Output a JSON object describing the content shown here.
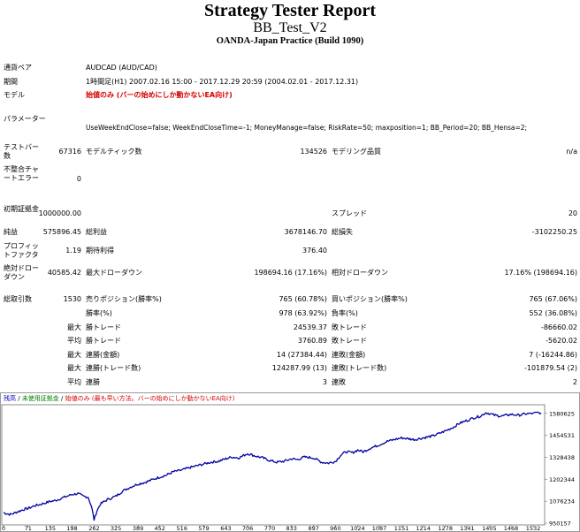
{
  "header": {
    "title": "Strategy Tester Report",
    "ea_name": "BB_Test_V2",
    "server": "OANDA-Japan Practice (Build 1090)"
  },
  "settings": {
    "symbol_label": "通貨ペア",
    "symbol_value": "AUDCAD (AUD/CAD)",
    "period_label": "期間",
    "period_value": "1時間足(H1) 2007.02.16 15:00 - 2017.12.29 20:59 (2004.02.01 - 2017.12.31)",
    "model_label": "モデル",
    "model_value": "始値のみ (バーの始めにしか動かないEA向け)",
    "params_label": "パラメーター",
    "params_value": "UseWeekEndClose=false; WeekEndCloseTime=-1; MoneyManage=false; RiskRate=50; maxposition=1; BB_Period=20; BB_Hensa=2;"
  },
  "stats1": {
    "bars_label": "テストバー数",
    "bars_value": "67316",
    "ticks_label": "モデルティック数",
    "ticks_value": "134526",
    "quality_label": "モデリング品質",
    "quality_value": "n/a",
    "mismatch_label": "不整合チャートエラー",
    "mismatch_value": "0"
  },
  "stats2": {
    "deposit_label": "初期証拠金",
    "deposit_value": "1000000.00",
    "spread_label": "スプレッド",
    "spread_value": "20",
    "net_label": "純益",
    "net_value": "575896.45",
    "gross_profit_label": "総利益",
    "gross_profit_value": "3678146.70",
    "gross_loss_label": "総損失",
    "gross_loss_value": "-3102250.25",
    "pf_label": "プロフィットファクタ",
    "pf_value": "1.19",
    "expected_label": "期待利得",
    "expected_value": "376.40",
    "abs_dd_label": "絶対ドローダウン",
    "abs_dd_value": "40585.42",
    "max_dd_label": "最大ドローダウン",
    "max_dd_value": "198694.16 (17.16%)",
    "rel_dd_label": "相対ドローダウン",
    "rel_dd_value": "17.16% (198694.16)"
  },
  "trades": {
    "total_label": "総取引数",
    "total_value": "1530",
    "short_label": "売りポジション(勝率%)",
    "short_value": "765 (60.78%)",
    "long_label": "買いポジション(勝率%)",
    "long_value": "765 (67.06%)",
    "win_pct_label": "勝率(%)",
    "win_pct_value": "978 (63.92%)",
    "loss_pct_label": "負率(%)",
    "loss_pct_value": "552 (36.08%)",
    "max_label": "最大",
    "avg_label": "平均",
    "win_trade_label": "勝トレード",
    "loss_trade_label": "敗トレード",
    "max_win_value": "24539.37",
    "max_loss_value": "-86660.02",
    "avg_win_value": "3760.89",
    "avg_loss_value": "-5620.02",
    "consec_money_win_label": "連勝(金額)",
    "consec_money_win_value": "14 (27384.44)",
    "consec_money_loss_label": "連敗(金額)",
    "consec_money_loss_value": "7 (-16244.86)",
    "consec_trade_win_label": "連勝(トレード数)",
    "consec_trade_win_value": "124287.99 (13)",
    "consec_trade_loss_label": "連敗(トレード数)",
    "consec_trade_loss_value": "-101879.54 (2)",
    "avg_consec_win_label": "連勝",
    "avg_consec_win_value": "3",
    "avg_consec_loss_label": "連敗",
    "avg_consec_loss_value": "2"
  },
  "legend": {
    "balance": "残高",
    "sep1": " / ",
    "margin": "未使用証拠金",
    "sep2": " / ",
    "model": "始値のみ (最も早い方法。バーの始めにしか動かないEA向け)"
  },
  "chart_data": {
    "type": "line",
    "series_color": "#0000a0",
    "xticks": [
      "0",
      "71",
      "135",
      "198",
      "262",
      "325",
      "389",
      "452",
      "516",
      "579",
      "643",
      "706",
      "770",
      "833",
      "897",
      "960",
      "1024",
      "1087",
      "1151",
      "1214",
      "1278",
      "1341",
      "1405",
      "1468",
      "1532"
    ],
    "yticks": [
      "950157",
      "1076234",
      "1202344",
      "1328438",
      "1454531",
      "1580625"
    ],
    "ylim": [
      950157,
      1620000
    ],
    "xlim": [
      0,
      1560
    ],
    "points": [
      [
        0,
        1010000
      ],
      [
        20,
        1000000
      ],
      [
        40,
        1015000
      ],
      [
        60,
        1030000
      ],
      [
        71,
        1035000
      ],
      [
        90,
        1050000
      ],
      [
        110,
        1060000
      ],
      [
        135,
        1075000
      ],
      [
        150,
        1080000
      ],
      [
        170,
        1095000
      ],
      [
        198,
        1115000
      ],
      [
        215,
        1120000
      ],
      [
        230,
        1105000
      ],
      [
        245,
        1100000
      ],
      [
        255,
        1040000
      ],
      [
        262,
        970000
      ],
      [
        270,
        1020000
      ],
      [
        280,
        1060000
      ],
      [
        300,
        1085000
      ],
      [
        325,
        1105000
      ],
      [
        345,
        1135000
      ],
      [
        370,
        1160000
      ],
      [
        389,
        1175000
      ],
      [
        410,
        1185000
      ],
      [
        430,
        1200000
      ],
      [
        452,
        1215000
      ],
      [
        470,
        1225000
      ],
      [
        490,
        1245000
      ],
      [
        516,
        1255000
      ],
      [
        540,
        1270000
      ],
      [
        560,
        1280000
      ],
      [
        579,
        1290000
      ],
      [
        600,
        1300000
      ],
      [
        620,
        1305000
      ],
      [
        643,
        1320000
      ],
      [
        660,
        1330000
      ],
      [
        680,
        1325000
      ],
      [
        706,
        1350000
      ],
      [
        730,
        1335000
      ],
      [
        750,
        1325000
      ],
      [
        770,
        1310000
      ],
      [
        790,
        1300000
      ],
      [
        810,
        1305000
      ],
      [
        833,
        1320000
      ],
      [
        850,
        1315000
      ],
      [
        870,
        1330000
      ],
      [
        897,
        1325000
      ],
      [
        920,
        1300000
      ],
      [
        940,
        1295000
      ],
      [
        960,
        1305000
      ],
      [
        975,
        1340000
      ],
      [
        990,
        1360000
      ],
      [
        1010,
        1355000
      ],
      [
        1024,
        1370000
      ],
      [
        1040,
        1360000
      ],
      [
        1060,
        1380000
      ],
      [
        1087,
        1400000
      ],
      [
        1110,
        1420000
      ],
      [
        1130,
        1430000
      ],
      [
        1151,
        1440000
      ],
      [
        1170,
        1435000
      ],
      [
        1190,
        1430000
      ],
      [
        1214,
        1440000
      ],
      [
        1240,
        1450000
      ],
      [
        1260,
        1465000
      ],
      [
        1278,
        1480000
      ],
      [
        1300,
        1500000
      ],
      [
        1320,
        1525000
      ],
      [
        1341,
        1540000
      ],
      [
        1360,
        1555000
      ],
      [
        1380,
        1565000
      ],
      [
        1395,
        1585000
      ],
      [
        1405,
        1580000
      ],
      [
        1420,
        1570000
      ],
      [
        1440,
        1565000
      ],
      [
        1468,
        1575000
      ],
      [
        1490,
        1570000
      ],
      [
        1510,
        1578000
      ],
      [
        1532,
        1580000
      ],
      [
        1545,
        1585000
      ],
      [
        1555,
        1583000
      ]
    ]
  }
}
